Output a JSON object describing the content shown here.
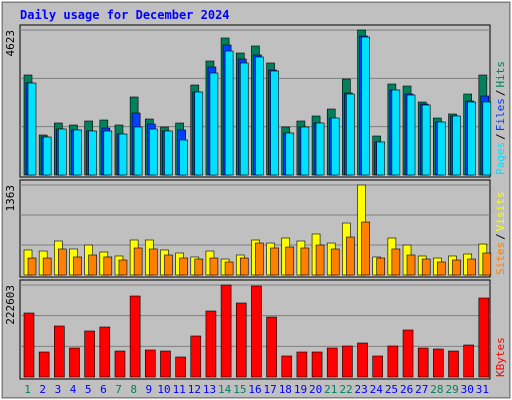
{
  "chart_data": [
    {
      "type": "bar",
      "title": "Daily usage for December 2024",
      "categories": [
        "1",
        "2",
        "3",
        "4",
        "5",
        "6",
        "7",
        "8",
        "9",
        "10",
        "11",
        "12",
        "13",
        "14",
        "15",
        "16",
        "17",
        "18",
        "19",
        "20",
        "21",
        "22",
        "23",
        "24",
        "25",
        "26",
        "27",
        "28",
        "29",
        "30",
        "31"
      ],
      "ylim": [
        0,
        4623
      ],
      "yticks": [
        4623
      ],
      "legend_separator": "/",
      "series": [
        {
          "name": "Hits",
          "color": "#00805c",
          "values": [
            3188,
            1275,
            1658,
            1594,
            1722,
            1753,
            1594,
            2487,
            1785,
            1530,
            1658,
            2869,
            3634,
            4368,
            3889,
            4113,
            3571,
            1530,
            1722,
            1881,
            2104,
            3060,
            4623,
            1243,
            2901,
            2837,
            2327,
            1817,
            1945,
            2582,
            3188
          ]
        },
        {
          "name": "Files",
          "color": "#0040ff",
          "values": [
            2933,
            1211,
            1466,
            1435,
            1403,
            1498,
            1307,
            1977,
            1626,
            1403,
            1435,
            2646,
            3443,
            4144,
            3698,
            3826,
            3347,
            1339,
            1530,
            1658,
            1817,
            2614,
            4431,
            1052,
            2710,
            2582,
            2263,
            1690,
            1881,
            2359,
            2519
          ]
        },
        {
          "name": "Pages",
          "color": "#00e0ff",
          "values": [
            2933,
            1211,
            1466,
            1435,
            1403,
            1403,
            1307,
            1530,
            1466,
            1403,
            1116,
            2646,
            3252,
            3953,
            3571,
            3762,
            3316,
            1339,
            1530,
            1658,
            1817,
            2582,
            4399,
            1052,
            2710,
            2550,
            2232,
            1690,
            1881,
            2327,
            2327
          ]
        }
      ]
    },
    {
      "type": "bar",
      "categories": [
        "1",
        "2",
        "3",
        "4",
        "5",
        "6",
        "7",
        "8",
        "9",
        "10",
        "11",
        "12",
        "13",
        "14",
        "15",
        "16",
        "17",
        "18",
        "19",
        "20",
        "21",
        "22",
        "23",
        "24",
        "25",
        "26",
        "27",
        "28",
        "29",
        "30",
        "31"
      ],
      "ylim": [
        0,
        1363
      ],
      "yticks": [
        1363
      ],
      "legend_separator": "/",
      "series": [
        {
          "name": "Visits",
          "color": "#ffff00",
          "values": [
            379,
            363,
            515,
            394,
            454,
            348,
            288,
            530,
            530,
            379,
            333,
            273,
            363,
            242,
            303,
            530,
            484,
            560,
            515,
            621,
            484,
            787,
            1363,
            273,
            560,
            454,
            288,
            257,
            288,
            318,
            469
          ]
        },
        {
          "name": "Sites",
          "color": "#ff8000",
          "values": [
            257,
            257,
            394,
            273,
            303,
            273,
            227,
            409,
            394,
            303,
            257,
            242,
            257,
            197,
            257,
            484,
            409,
            424,
            409,
            454,
            394,
            575,
            802,
            257,
            394,
            303,
            242,
            197,
            227,
            242,
            333
          ]
        }
      ]
    },
    {
      "type": "bar",
      "categories": [
        "1",
        "2",
        "3",
        "4",
        "5",
        "6",
        "7",
        "8",
        "9",
        "10",
        "11",
        "12",
        "13",
        "14",
        "15",
        "16",
        "17",
        "18",
        "19",
        "20",
        "21",
        "22",
        "23",
        "24",
        "25",
        "26",
        "27",
        "28",
        "29",
        "30",
        "31"
      ],
      "category_colors": [
        "#00805c",
        "#0000ff",
        "#0000ff",
        "#0000ff",
        "#0000ff",
        "#0000ff",
        "#00805c",
        "#00805c",
        "#0000ff",
        "#0000ff",
        "#0000ff",
        "#0000ff",
        "#0000ff",
        "#00805c",
        "#00805c",
        "#0000ff",
        "#0000ff",
        "#0000ff",
        "#0000ff",
        "#0000ff",
        "#00805c",
        "#00805c",
        "#0000ff",
        "#0000ff",
        "#0000ff",
        "#0000ff",
        "#0000ff",
        "#00805c",
        "#00805c",
        "#0000ff",
        "#0000ff"
      ],
      "ylim": [
        0,
        222603
      ],
      "yticks": [
        222603
      ],
      "series": [
        {
          "name": "KBytes",
          "color": "#ff0000",
          "values": [
            154859,
            60490,
            123398,
            70169,
            111302,
            120980,
            62910,
            195989,
            65330,
            62910,
            48392,
            99204,
            159692,
            222603,
            179050,
            220184,
            145176,
            50812,
            60490,
            60490,
            70169,
            75008,
            82266,
            50812,
            75008,
            113721,
            70169,
            67749,
            62910,
            77427,
            191149
          ]
        }
      ]
    }
  ]
}
